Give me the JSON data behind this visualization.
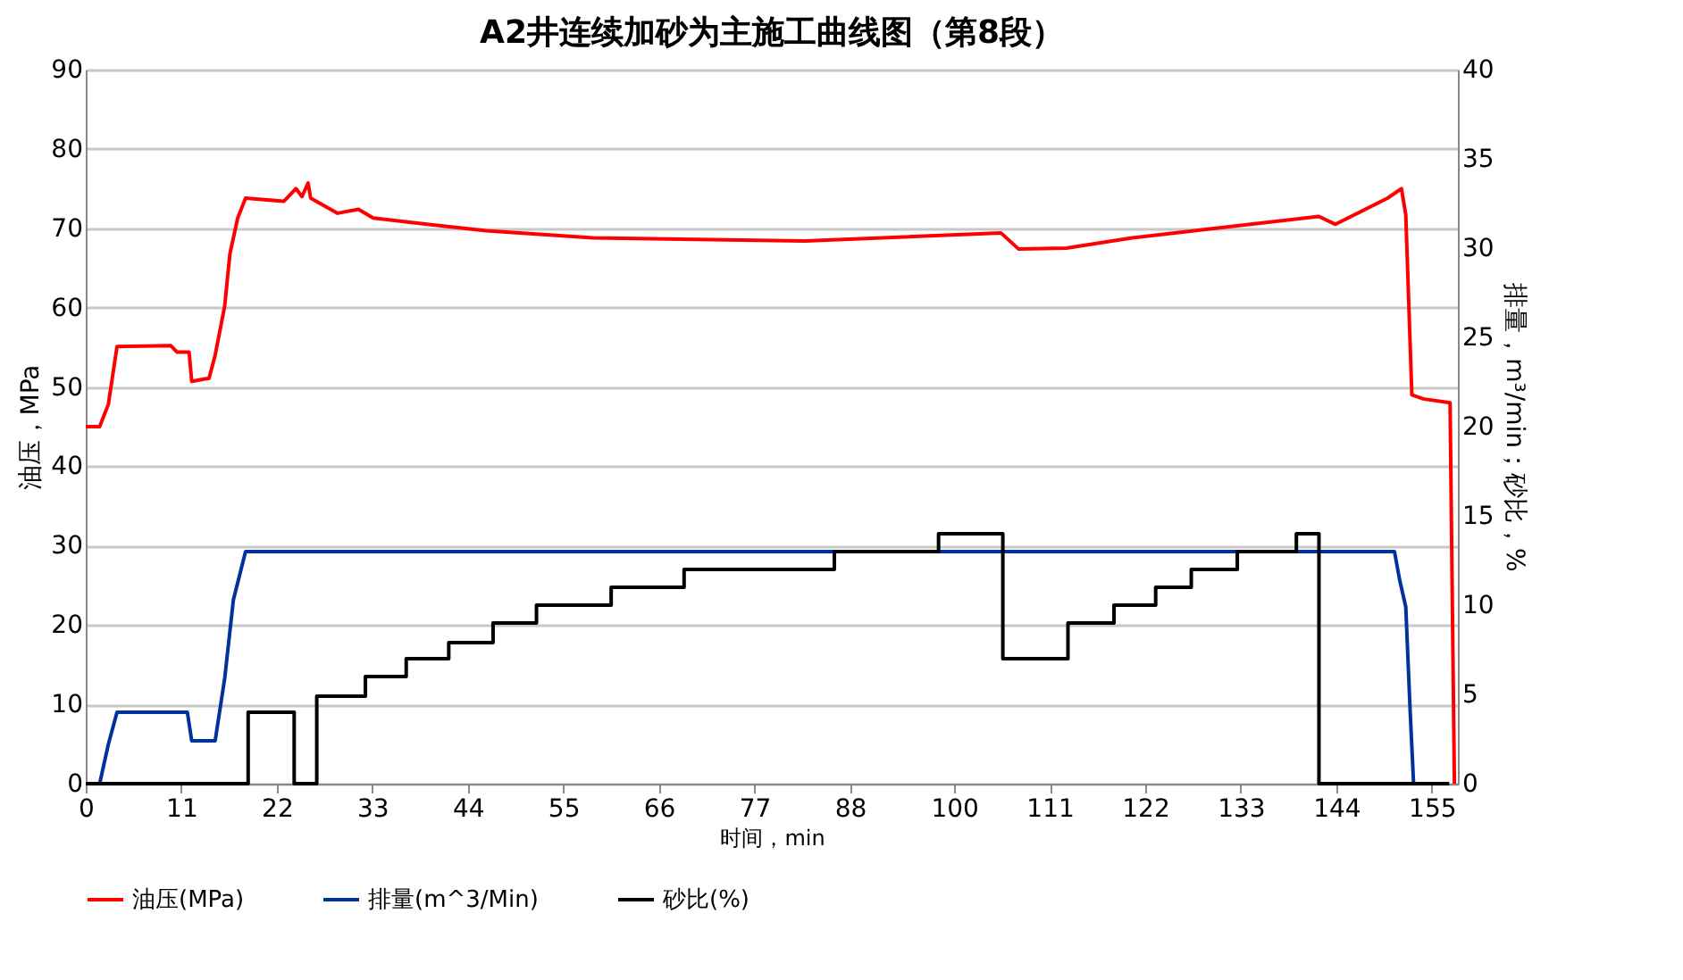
{
  "chart_data": {
    "type": "line",
    "title": "A2井连续加砂为主施工曲线图（第8段）",
    "xlabel": "时间，min",
    "ylabel": "油压，MPa",
    "y2label": "排量，m³/min；砂比，%",
    "xlim": [
      0,
      158
    ],
    "xticks": [
      0,
      11,
      22,
      33,
      44,
      55,
      66,
      77,
      88,
      100,
      111,
      122,
      133,
      144,
      155
    ],
    "ylim": [
      0,
      90
    ],
    "yticks": [
      0,
      10,
      20,
      30,
      40,
      50,
      60,
      70,
      80,
      90
    ],
    "y2lim": [
      0,
      40
    ],
    "y2ticks": [
      0,
      5,
      10,
      15,
      20,
      25,
      30,
      35,
      40
    ],
    "grid": "y",
    "legend": "bottom",
    "marker": "none",
    "line_style": "solid",
    "series": [
      {
        "name": "油压(MPa)",
        "color": "#ff0000",
        "x": [
          0,
          1.6,
          2.6,
          3.6,
          9.8,
          10.5,
          11.9,
          12.2,
          14.2,
          14.9,
          16.0,
          16.6,
          17.5,
          18.4,
          22.8,
          24.2,
          24.9,
          25.6,
          25.9,
          29.0,
          31.4,
          33.1,
          39.3,
          46.1,
          58.4,
          82.8,
          105.4,
          107.4,
          112.9,
          120.5,
          142.0,
          143.9,
          149.9,
          151.5,
          152.0,
          152.7,
          154.0,
          157.1,
          157.6
        ],
        "values": [
          45.0,
          45.0,
          47.8,
          55.1,
          55.2,
          54.4,
          54.4,
          50.7,
          51.1,
          54.0,
          60.2,
          66.8,
          71.3,
          73.8,
          73.4,
          75.0,
          74.0,
          75.7,
          73.8,
          71.9,
          72.4,
          71.3,
          70.5,
          69.7,
          68.8,
          68.4,
          69.4,
          67.4,
          67.5,
          68.8,
          71.5,
          70.5,
          73.8,
          75.0,
          71.7,
          49.0,
          48.5,
          48.0,
          0
        ]
      },
      {
        "name": "排量(m^3/Min)",
        "color": "#003399",
        "axis": "y2",
        "x": [
          1.6,
          2.6,
          3.6,
          11.7,
          12.2,
          14.9,
          16.0,
          17.0,
          18.4,
          150.7,
          151.3,
          152.0,
          152.5,
          152.9
        ],
        "values": [
          0,
          2.2,
          4.0,
          4.0,
          2.4,
          2.4,
          5.9,
          10.3,
          13.0,
          13.0,
          11.4,
          9.9,
          4.1,
          0
        ]
      },
      {
        "name": "砂比(%)",
        "color": "#000000",
        "axis": "y2",
        "x": [
          0,
          18.7,
          18.7,
          24.0,
          24.0,
          26.6,
          26.6,
          32.2,
          32.2,
          36.9,
          36.9,
          41.8,
          41.8,
          46.9,
          46.9,
          51.9,
          51.9,
          60.5,
          60.5,
          68.9,
          68.9,
          86.2,
          86.2,
          98.2,
          98.2,
          105.6,
          105.6,
          113.1,
          113.1,
          118.4,
          118.4,
          123.2,
          123.2,
          127.3,
          127.3,
          132.6,
          132.6,
          139.4,
          139.4,
          142.0,
          142.0,
          157.0
        ],
        "values": [
          0,
          0,
          4.0,
          4.0,
          0,
          0,
          4.9,
          4.9,
          6.0,
          6.0,
          7.0,
          7.0,
          7.9,
          7.9,
          9.0,
          9.0,
          10.0,
          10.0,
          11.0,
          11.0,
          12.0,
          12.0,
          13.0,
          13.0,
          14.0,
          14.0,
          7.0,
          7.0,
          9.0,
          9.0,
          10.0,
          10.0,
          11.0,
          11.0,
          12.0,
          12.0,
          13.0,
          13.0,
          14.0,
          14.0,
          0,
          0
        ]
      }
    ]
  }
}
